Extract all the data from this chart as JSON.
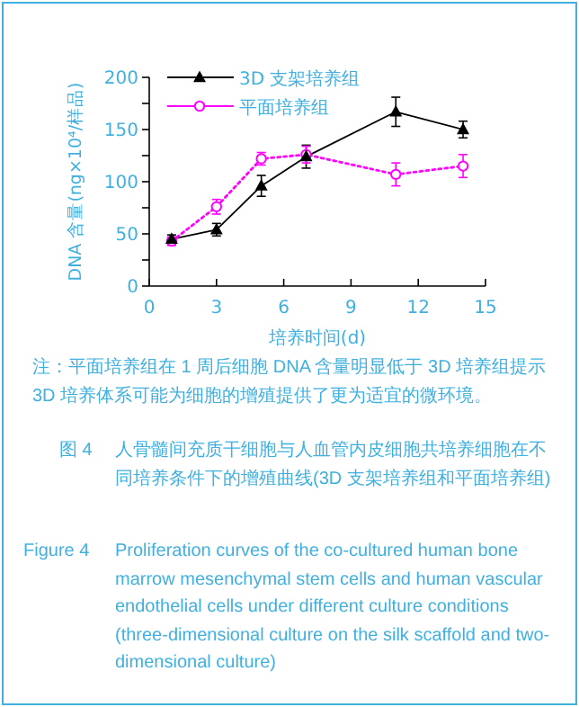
{
  "chart_data": {
    "type": "line",
    "xlabel": "培养时间(d)",
    "ylabel": "DNA 含量(ng×10⁴/样品)",
    "xlim": [
      0,
      15
    ],
    "xticks": [
      0,
      3,
      6,
      9,
      12,
      15
    ],
    "ylim": [
      0,
      200
    ],
    "yticks": [
      0,
      {
        "value": 25,
        "label": null
      },
      50,
      {
        "value": 75,
        "label": null
      },
      100,
      {
        "value": 125,
        "label": null
      },
      150,
      {
        "value": 175,
        "label": null
      },
      200
    ],
    "grid": false,
    "legend": "top left",
    "series": [
      {
        "name": "3D 支架培养组",
        "color": "#000000",
        "marker": "triangle",
        "line_style": "solid",
        "x": [
          1,
          3,
          5,
          7,
          11,
          14
        ],
        "values": [
          45,
          54,
          96,
          124,
          167,
          150
        ],
        "errors": [
          4,
          6,
          10,
          11,
          14,
          8
        ]
      },
      {
        "name": "平面培养组",
        "color": "#ff00ff",
        "marker": "circle",
        "line_style": "dotted",
        "x": [
          1,
          3,
          5,
          7,
          11,
          14
        ],
        "values": [
          43,
          76,
          122,
          126,
          107,
          115
        ],
        "errors": [
          4,
          7,
          6,
          8,
          11,
          11
        ]
      }
    ],
    "annotations": [
      "注：平面培养组在 1 周后细胞 DNA 含量明显低于 3D 培养组提示 3D 培养体系可能为细胞的增殖提供了更为适宜的微环境。",
      "图 4",
      "人骨髓间充质干细胞与人血管内皮细胞共培养细胞在不同培养条件下的增殖曲线(3D 支架培养组和平面培养组)",
      "Figure 4",
      "Proliferation curves of the co-cultured human bone marrow mesenchymal stem cells and human vascular endothelial cells under different culture conditions (three-dimensional culture on the silk scaffold and two-dimensional culture)"
    ]
  }
}
